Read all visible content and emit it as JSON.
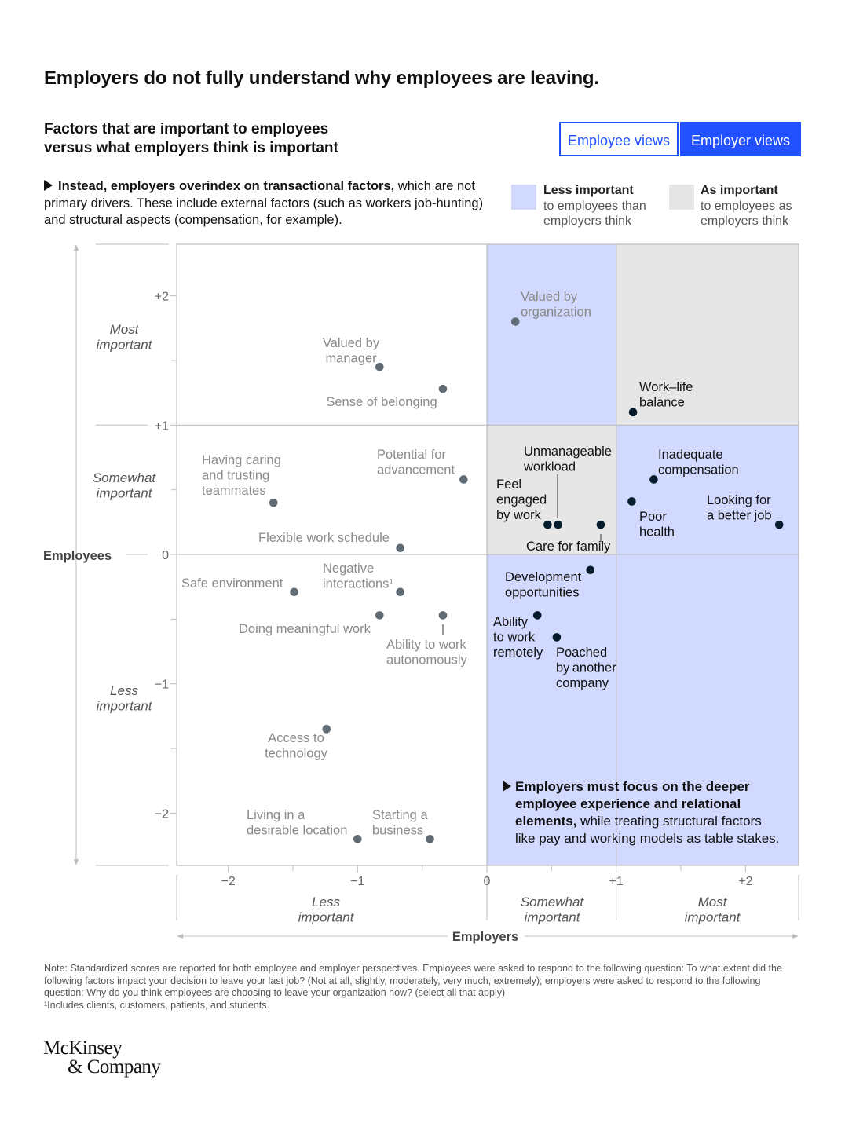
{
  "header": {
    "title": "Employers do not fully understand why employees are leaving.",
    "subtitle": "Factors that are important to employees versus what employers think is important"
  },
  "toggle": {
    "employee_label": "Employee views",
    "employer_label": "Employer views",
    "selected": "Employer views"
  },
  "callout_top": {
    "bold": "Instead, employers overindex on transactional factors,",
    "text": " which are not primary drivers. These include external factors (such as workers job-hunting) and structural aspects (compensation, for example)."
  },
  "legend": {
    "less": {
      "title": "Less important",
      "text": "to employees than employers think",
      "color": "#d1d9fe"
    },
    "as": {
      "title": "As important",
      "text": "to employees as employers think",
      "color": "#e6e6e6"
    }
  },
  "colors": {
    "accent": "#2251ff",
    "dot_dark": "#051c2c",
    "dot_gray": "#5f6b75"
  },
  "callout_bottom": {
    "bold": "Employers must focus on the deeper employee experience and relational elements,",
    "text": " while treating structural factors like pay and working models as table stakes."
  },
  "chart_data": {
    "type": "scatter",
    "title": "Factors that are important to employees versus what employers think is important",
    "xlabel": "Employers",
    "ylabel": "Employees",
    "xlim": [
      -2.4,
      2.4
    ],
    "ylim": [
      -2.4,
      2.4
    ],
    "x_ticks": [
      "−2",
      "−1",
      "0",
      "+1",
      "+2"
    ],
    "y_ticks": [
      "+2",
      "+1",
      "0",
      "−1",
      "−2"
    ],
    "x_bands": [
      "Less important",
      "Somewhat important",
      "Most important"
    ],
    "y_bands": [
      "Most important",
      "Somewhat important",
      "Less important"
    ],
    "points": [
      {
        "label": "Valued by organization",
        "x": 0.22,
        "y": 1.8,
        "style": "gray"
      },
      {
        "label": "Valued by manager",
        "x": -0.83,
        "y": 1.45,
        "style": "gray"
      },
      {
        "label": "Sense of belonging",
        "x": -0.34,
        "y": 1.28,
        "style": "gray"
      },
      {
        "label": "Work–life balance",
        "x": 1.13,
        "y": 1.1,
        "style": "dark"
      },
      {
        "label": "Having caring and trusting teammates",
        "x": -1.65,
        "y": 0.4,
        "style": "gray"
      },
      {
        "label": "Potential for advancement",
        "x": -0.18,
        "y": 0.58,
        "style": "gray"
      },
      {
        "label": "Unmanageable workload",
        "x": 0.55,
        "y": 0.23,
        "style": "dark"
      },
      {
        "label": "Feel engaged by work",
        "x": 0.47,
        "y": 0.23,
        "style": "dark"
      },
      {
        "label": "Care for family",
        "x": 0.88,
        "y": 0.23,
        "style": "dark"
      },
      {
        "label": "Inadequate compensation",
        "x": 1.29,
        "y": 0.58,
        "style": "dark"
      },
      {
        "label": "Poor health",
        "x": 1.12,
        "y": 0.41,
        "style": "dark"
      },
      {
        "label": "Looking for a better job",
        "x": 2.26,
        "y": 0.23,
        "style": "dark"
      },
      {
        "label": "Flexible work schedule",
        "x": -0.67,
        "y": 0.05,
        "style": "gray"
      },
      {
        "label": "Safe environment",
        "x": -1.49,
        "y": -0.29,
        "style": "gray"
      },
      {
        "label": "Negative interactions",
        "x": -0.67,
        "y": -0.29,
        "style": "gray"
      },
      {
        "label": "Development opportunities",
        "x": 0.8,
        "y": -0.12,
        "style": "dark"
      },
      {
        "label": "Doing meaningful work",
        "x": -0.83,
        "y": -0.47,
        "style": "gray"
      },
      {
        "label": "Ability to work autonomously",
        "x": -0.34,
        "y": -0.47,
        "style": "gray"
      },
      {
        "label": "Ability to work remotely",
        "x": 0.39,
        "y": -0.47,
        "style": "dark"
      },
      {
        "label": "Poached by another company",
        "x": 0.54,
        "y": -0.64,
        "style": "dark"
      },
      {
        "label": "Access to technology",
        "x": -1.24,
        "y": -1.35,
        "style": "gray"
      },
      {
        "label": "Living in a desirable location",
        "x": -1.0,
        "y": -2.2,
        "style": "gray"
      },
      {
        "label": "Starting a business",
        "x": -0.44,
        "y": -2.2,
        "style": "gray"
      }
    ]
  },
  "footnote": {
    "note": "Note: Standardized scores are reported for both employee and employer perspectives. Employees were asked to respond to the following question: To what extent did the following factors impact your decision to leave your last job? (Not at all, slightly, moderately, very much, extremely); employers were asked to respond to the following question: Why do you think employees are choosing to leave your organization now? (select all that apply)",
    "sup": "¹Includes clients, customers, patients, and students."
  },
  "logo": {
    "line1": "McKinsey",
    "line2": "& Company"
  }
}
